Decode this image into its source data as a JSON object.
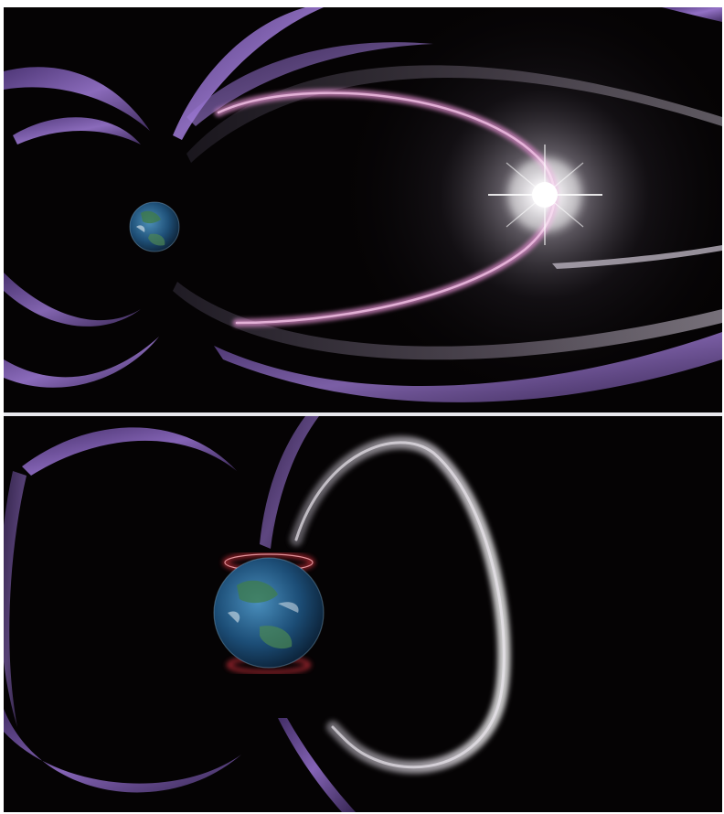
{
  "image": {
    "panels": [
      {
        "id": "top",
        "subject": "earth-magnetosphere-reconnection-flash"
      },
      {
        "id": "bottom",
        "subject": "earth-aurora-magnetic-field-lines"
      }
    ]
  },
  "colors": {
    "space": "#050304",
    "field_line_purple": "#8a62c4",
    "field_line_pink": "#d98ac8",
    "flash_white": "#ffffff",
    "aurora_red": "#ff3b4a",
    "earth_ocean": "#2c6a9a",
    "divider": "#e9e9ee"
  }
}
